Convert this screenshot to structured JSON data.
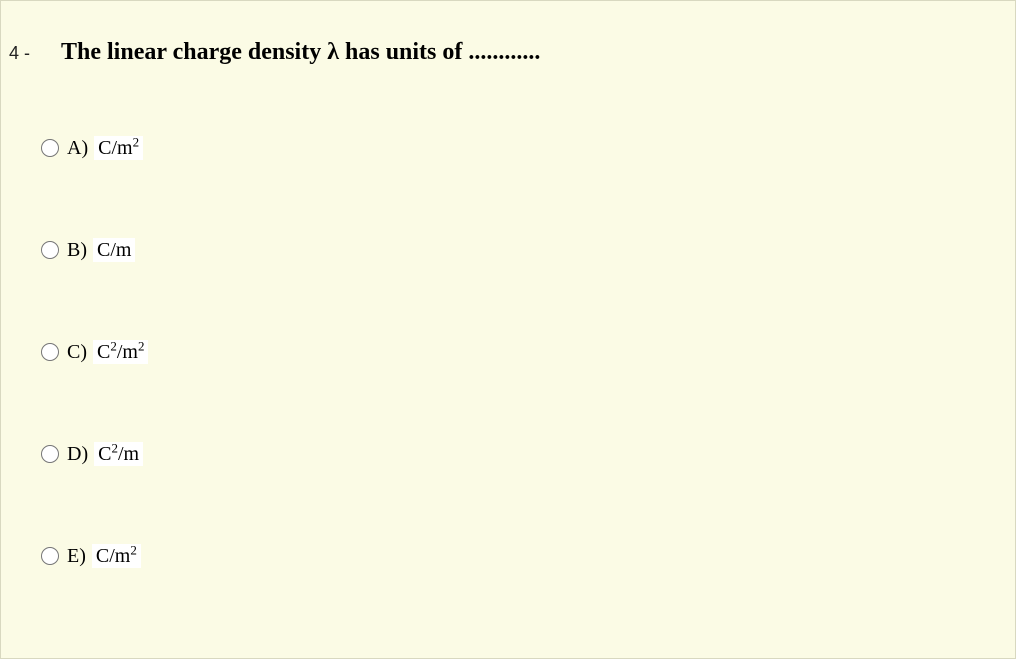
{
  "question": {
    "number": "4 -",
    "text": "The linear charge density λ has units of ............"
  },
  "options": [
    {
      "letter": "A)",
      "label_html": "C/m<sup>2</sup>"
    },
    {
      "letter": "B)",
      "label_html": "C/m"
    },
    {
      "letter": "C)",
      "label_html": "C<sup>2</sup>/m<sup>2</sup>"
    },
    {
      "letter": "D)",
      "label_html": "C<sup>2</sup>/m"
    },
    {
      "letter": "E)",
      "label_html": "C/m<sup>2</sup>"
    }
  ],
  "colors": {
    "page_background": "#fbfbe5",
    "option_highlight_background": "#ffffff",
    "text_color": "#000000",
    "border_color": "#d8d8c0"
  },
  "typography": {
    "question_font_family": "Times New Roman",
    "question_font_size_pt": 18,
    "question_font_weight": "bold",
    "option_font_size_pt": 15,
    "number_font_family": "Arial",
    "number_font_size_pt": 13
  }
}
